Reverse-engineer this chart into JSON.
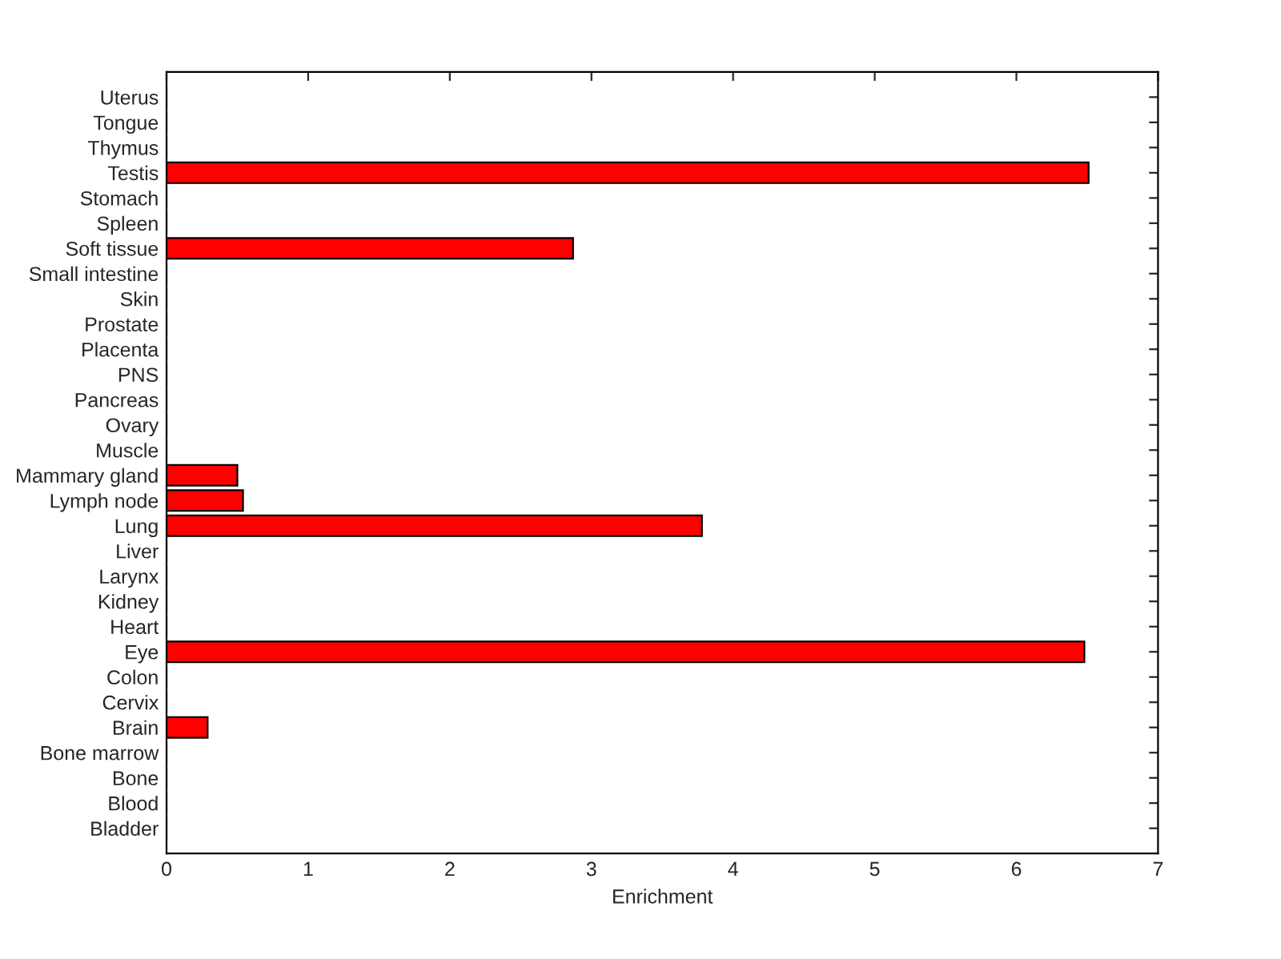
{
  "chart_data": {
    "type": "bar",
    "orientation": "horizontal",
    "xlabel": "Enrichment",
    "categories": [
      "Uterus",
      "Tongue",
      "Thymus",
      "Testis",
      "Stomach",
      "Spleen",
      "Soft tissue",
      "Small intestine",
      "Skin",
      "Prostate",
      "Placenta",
      "PNS",
      "Pancreas",
      "Ovary",
      "Muscle",
      "Mammary gland",
      "Lymph node",
      "Lung",
      "Liver",
      "Larynx",
      "Kidney",
      "Heart",
      "Eye",
      "Colon",
      "Cervix",
      "Brain",
      "Bone marrow",
      "Bone",
      "Blood",
      "Bladder"
    ],
    "values": [
      0,
      0,
      0,
      6.51,
      0,
      0,
      2.87,
      0,
      0,
      0,
      0,
      0,
      0,
      0,
      0,
      0.5,
      0.54,
      3.78,
      0,
      0,
      0,
      0,
      6.48,
      0,
      0,
      0.29,
      0,
      0,
      0,
      0
    ],
    "color": "#ff0000",
    "xlim": [
      0,
      7
    ],
    "xticks": [
      0,
      1,
      2,
      3,
      4,
      5,
      6,
      7
    ],
    "grid": false,
    "legend": false
  }
}
